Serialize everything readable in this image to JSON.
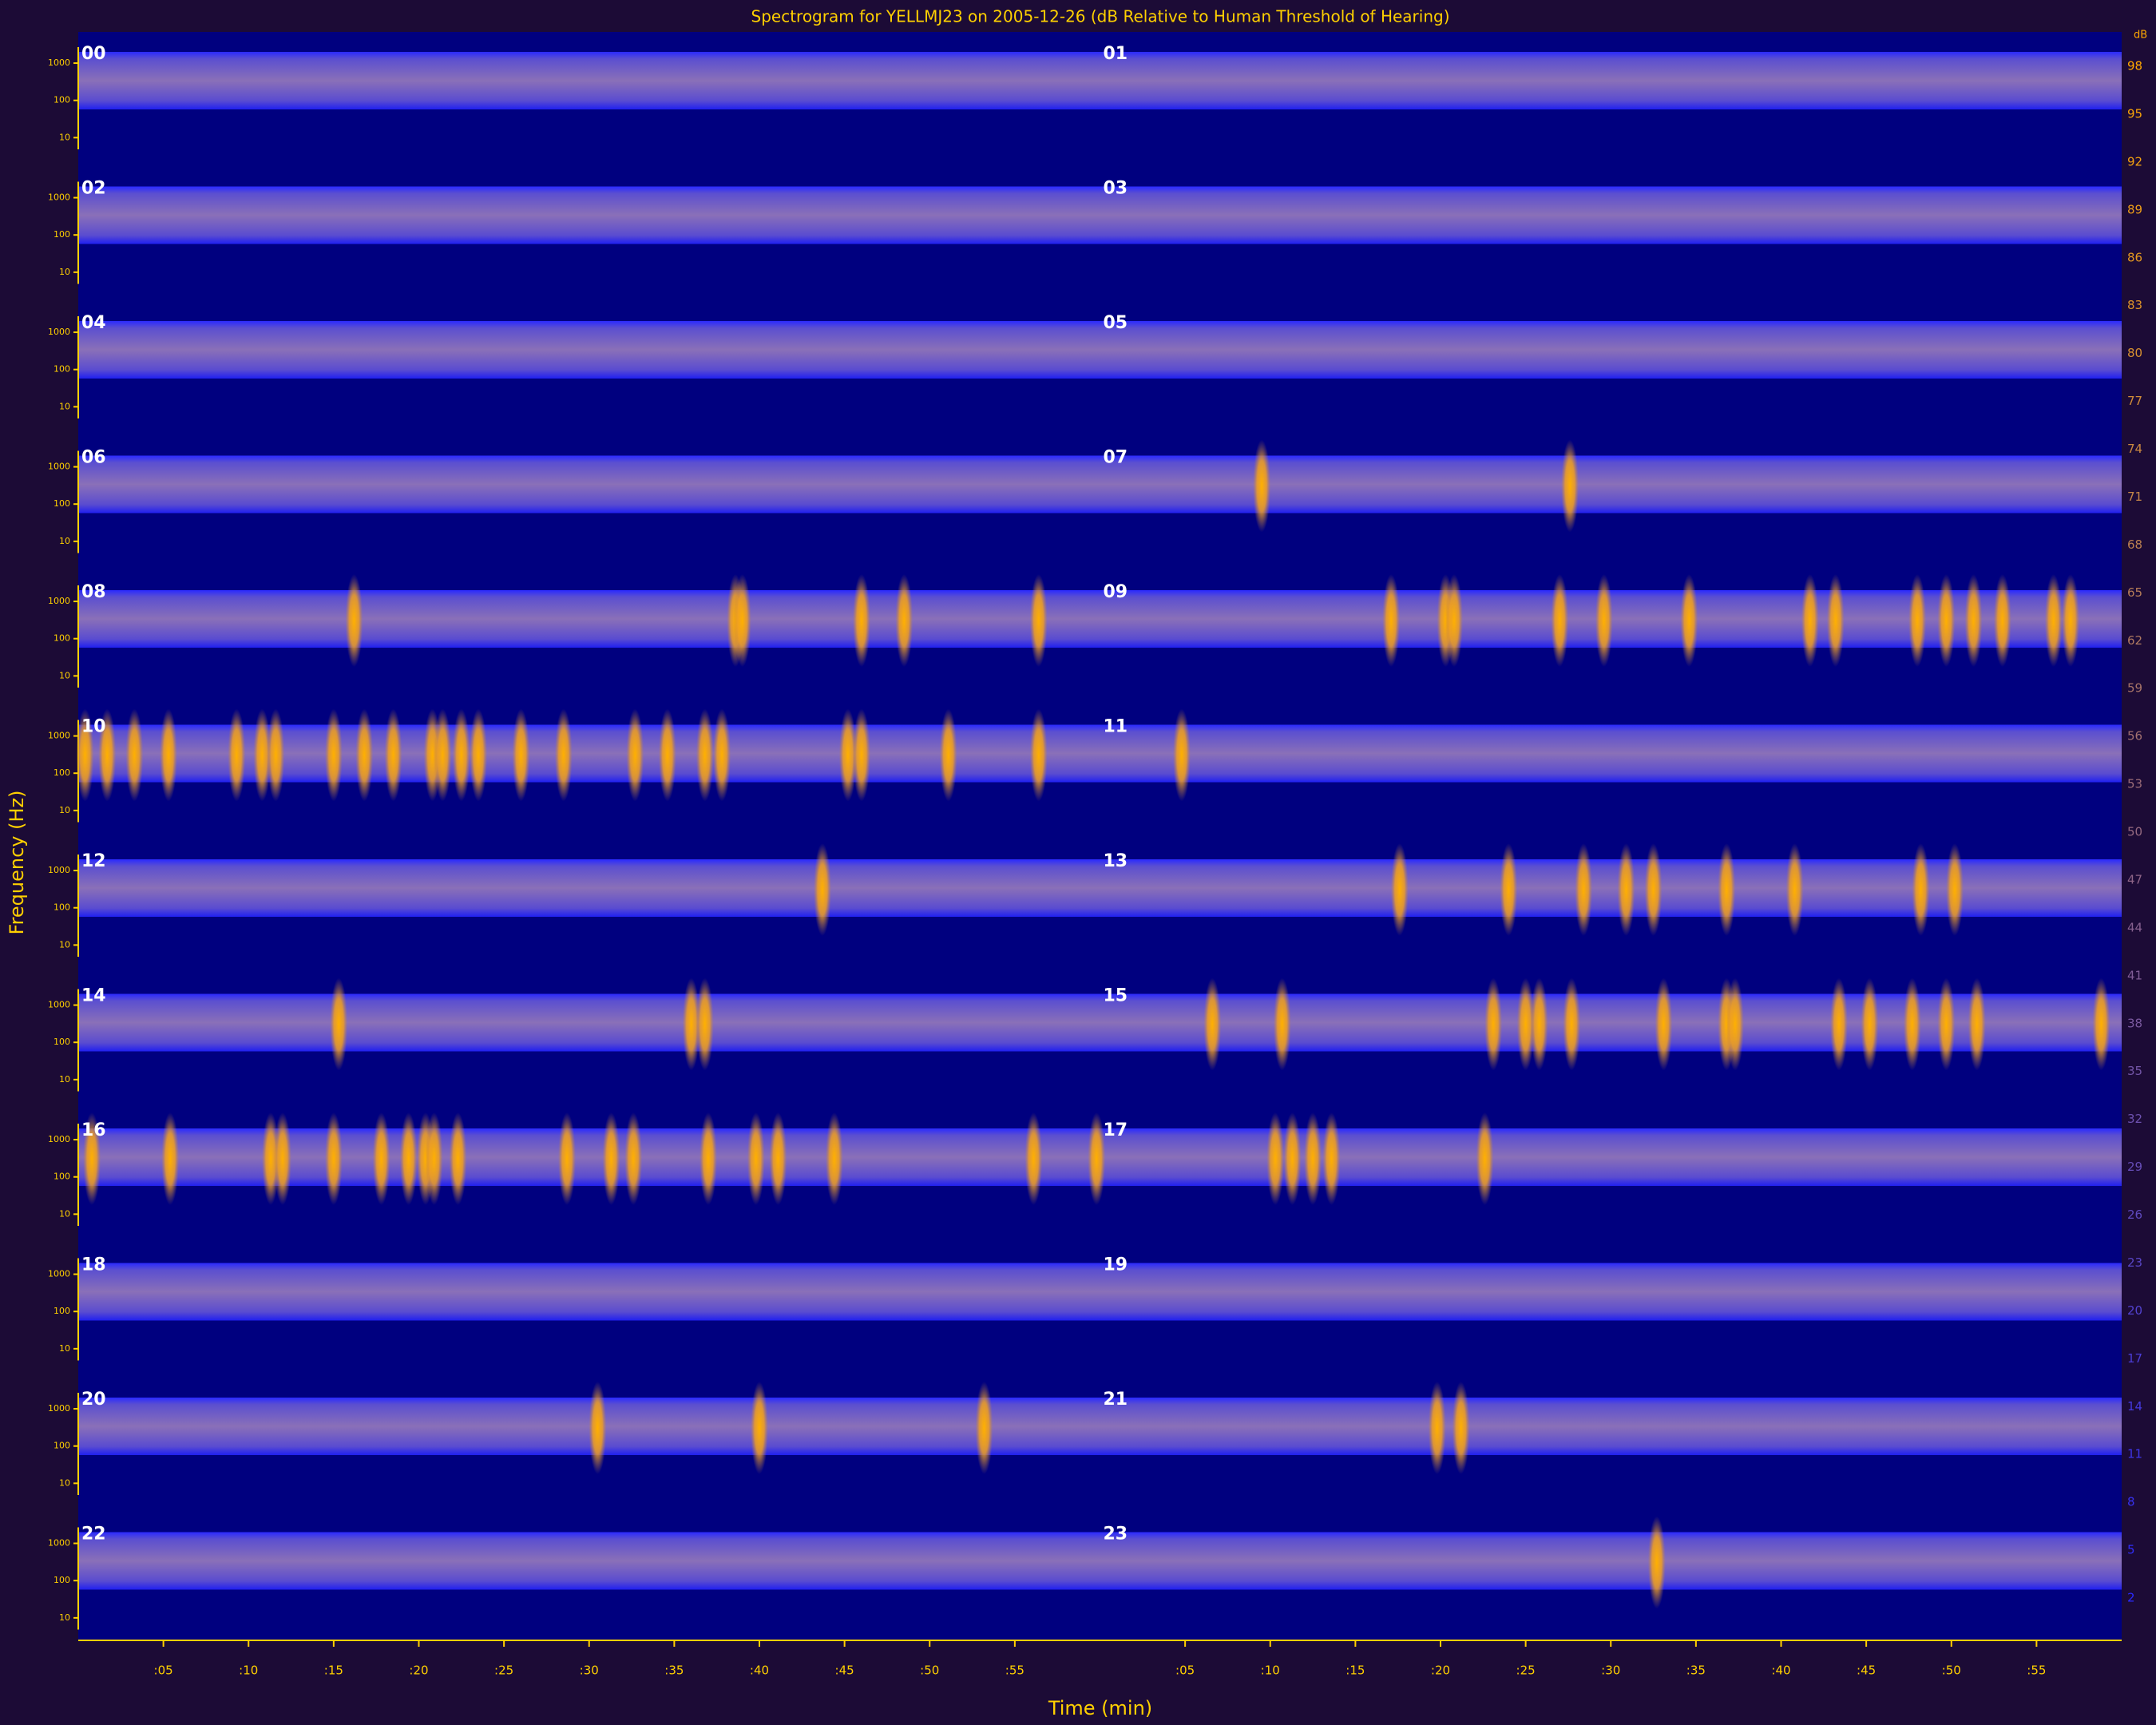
{
  "chart_data": {
    "type": "spectrogram",
    "title": "Spectrogram for YELLMJ23 on 2005-12-26 (dB Relative to Human Threshold of Hearing)",
    "ylabel": "Frequency (Hz)",
    "xlabel": "Time (min)",
    "hours": [
      "00",
      "01",
      "02",
      "03",
      "04",
      "05",
      "06",
      "07",
      "08",
      "09",
      "10",
      "11",
      "12",
      "13",
      "14",
      "15",
      "16",
      "17",
      "18",
      "19",
      "20",
      "21",
      "22",
      "23"
    ],
    "events": [
      [],
      [],
      [],
      [],
      [],
      [],
      [],
      [
        9.5,
        27.6
      ],
      [
        16.2,
        38.6,
        39,
        46,
        48.5,
        56.4
      ],
      [
        17.1,
        20.3,
        20.8,
        27,
        29.6,
        34.6,
        41.7,
        43.2,
        48,
        49.7,
        51.3,
        53,
        56,
        57
      ],
      [
        0.4,
        1.7,
        3.3,
        5.3,
        9.3,
        10.8,
        11.6,
        15,
        16.8,
        18.5,
        20.8,
        21.4,
        22.5,
        23.5,
        26,
        28.5,
        32.7,
        34.6,
        36.8,
        37.8,
        45.2,
        46,
        51.1,
        56.4
      ],
      [
        4.8
      ],
      [
        43.7
      ],
      [
        17.6,
        24,
        28.4,
        30.9,
        32.5,
        36.8,
        40.8,
        48.2,
        50.2
      ],
      [
        15.3,
        36,
        36.8
      ],
      [
        6.6,
        10.7,
        23.1,
        25,
        25.8,
        27.7,
        33.1,
        36.8,
        37.3,
        43.4,
        45.2,
        47.7,
        49.7,
        51.5,
        58.8
      ],
      [
        0.8,
        5.4,
        11.3,
        12,
        15,
        17.8,
        19.4,
        20.4,
        20.9,
        22.3,
        28.7,
        31.3,
        32.6,
        37,
        39.8,
        41.1,
        44.4,
        56.1,
        59.8
      ],
      [
        10.3,
        11.3,
        12.5,
        13.6,
        22.6
      ],
      [],
      [],
      [
        30.5,
        40,
        53.2
      ],
      [
        19.8,
        21.2
      ],
      [],
      [
        32.7
      ]
    ],
    "xlim": [
      0,
      60
    ],
    "xticks": [
      {
        "value": 5,
        "label": ":05"
      },
      {
        "value": 10,
        "label": ":10"
      },
      {
        "value": 15,
        "label": ":15"
      },
      {
        "value": 20,
        "label": ":20"
      },
      {
        "value": 25,
        "label": ":25"
      },
      {
        "value": 30,
        "label": ":30"
      },
      {
        "value": 35,
        "label": ":35"
      },
      {
        "value": 40,
        "label": ":40"
      },
      {
        "value": 45,
        "label": ":45"
      },
      {
        "value": 50,
        "label": ":50"
      },
      {
        "value": 55,
        "label": ":55"
      }
    ],
    "ylim": [
      1,
      2000
    ],
    "log_y": true,
    "yticks": [
      1000,
      100,
      10
    ],
    "colorbar_label": "dB",
    "clim": [
      2,
      98
    ],
    "cticks": [
      98,
      95,
      92,
      89,
      86,
      83,
      80,
      77,
      74,
      71,
      68,
      65,
      62,
      59,
      56,
      53,
      50,
      47,
      44,
      41,
      38,
      35,
      32,
      29,
      26,
      23,
      20,
      17,
      14,
      11,
      8,
      5,
      2
    ],
    "colors": [
      "#2a2aff",
      "#ffa800"
    ]
  }
}
